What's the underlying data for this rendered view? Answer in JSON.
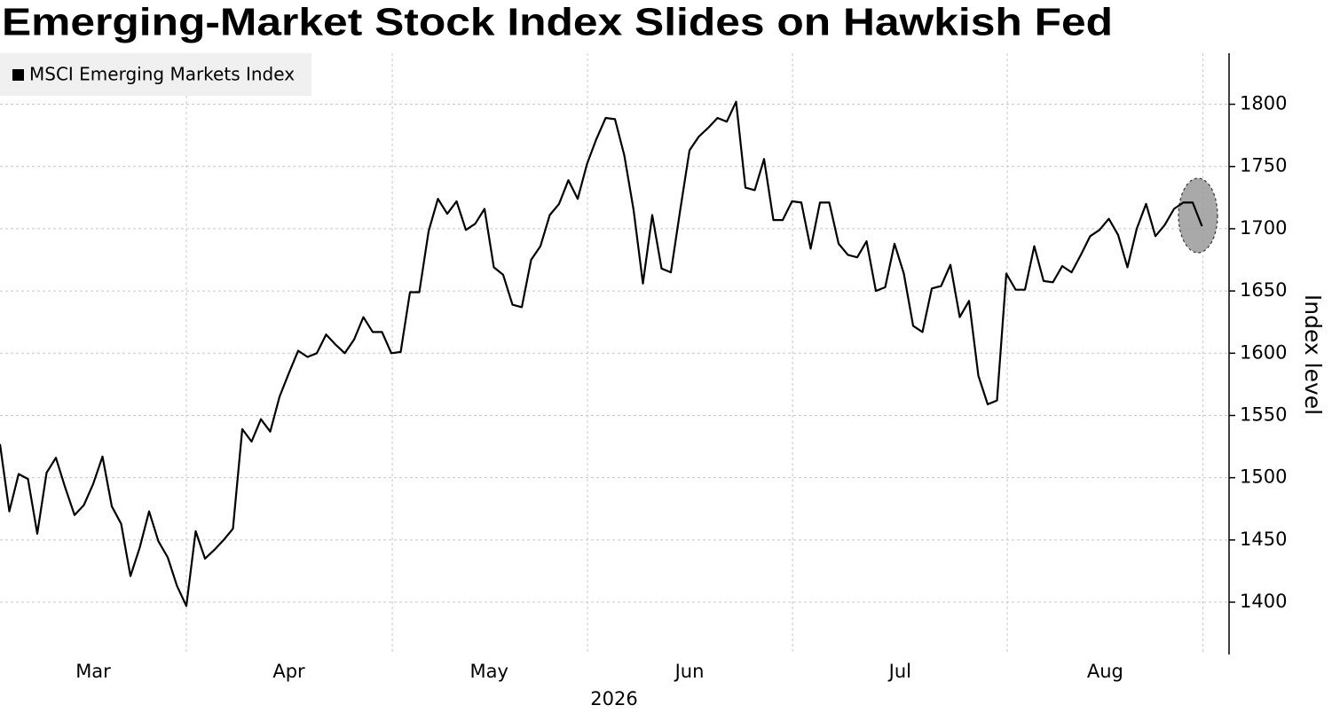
{
  "chart_data": {
    "type": "line",
    "title": "Emerging-Market Stock Index Slides on Hawkish Fed",
    "xlabel": "2026",
    "ylabel": "Index level",
    "legend": "top-left",
    "grid": true,
    "series": [
      {
        "name": "MSCI Emerging Markets Index",
        "color": "#000000",
        "values": [
          1527,
          1473,
          1503,
          1499,
          1455,
          1504,
          1516,
          1492,
          1470,
          1478,
          1495,
          1517,
          1477,
          1463,
          1421,
          1444,
          1473,
          1449,
          1436,
          1413,
          1397,
          1457,
          1435,
          1442,
          1450,
          1459,
          1539,
          1529,
          1547,
          1537,
          1565,
          1584,
          1602,
          1597,
          1600,
          1615,
          1607,
          1600,
          1611,
          1629,
          1617,
          1617,
          1600,
          1601,
          1649,
          1649,
          1698,
          1724,
          1712,
          1722,
          1699,
          1704,
          1716,
          1669,
          1663,
          1639,
          1637,
          1675,
          1686,
          1711,
          1720,
          1739,
          1724,
          1752,
          1772,
          1789,
          1788,
          1759,
          1715,
          1656,
          1711,
          1668,
          1665,
          1715,
          1763,
          1774,
          1781,
          1789,
          1786,
          1802,
          1733,
          1731,
          1756,
          1707,
          1707,
          1722,
          1721,
          1684,
          1721,
          1721,
          1688,
          1679,
          1677,
          1690,
          1650,
          1653,
          1688,
          1664,
          1622,
          1617,
          1652,
          1654,
          1671,
          1629,
          1642,
          1582,
          1559,
          1562,
          1664,
          1651,
          1651,
          1686,
          1658,
          1657,
          1670,
          1665,
          1679,
          1694,
          1699,
          1708,
          1695,
          1669,
          1700,
          1720,
          1694,
          1703,
          1716,
          1721,
          1721,
          1702
        ]
      }
    ],
    "xlim": [
      0,
      131.9
    ],
    "xticks": [
      {
        "value": 10,
        "label": "Mar"
      },
      {
        "value": 31,
        "label": "Apr"
      },
      {
        "value": 52.5,
        "label": "May"
      },
      {
        "value": 74,
        "label": "Jun"
      },
      {
        "value": 96.6,
        "label": "Jul"
      },
      {
        "value": 118.6,
        "label": "Aug"
      }
    ],
    "xgrid": [
      20,
      42.1,
      63.05,
      85.05,
      108.1,
      129.1
    ],
    "ylim": [
      1358,
      1841
    ],
    "yticks": [
      1400,
      1450,
      1500,
      1550,
      1600,
      1650,
      1700,
      1750,
      1800
    ]
  }
}
